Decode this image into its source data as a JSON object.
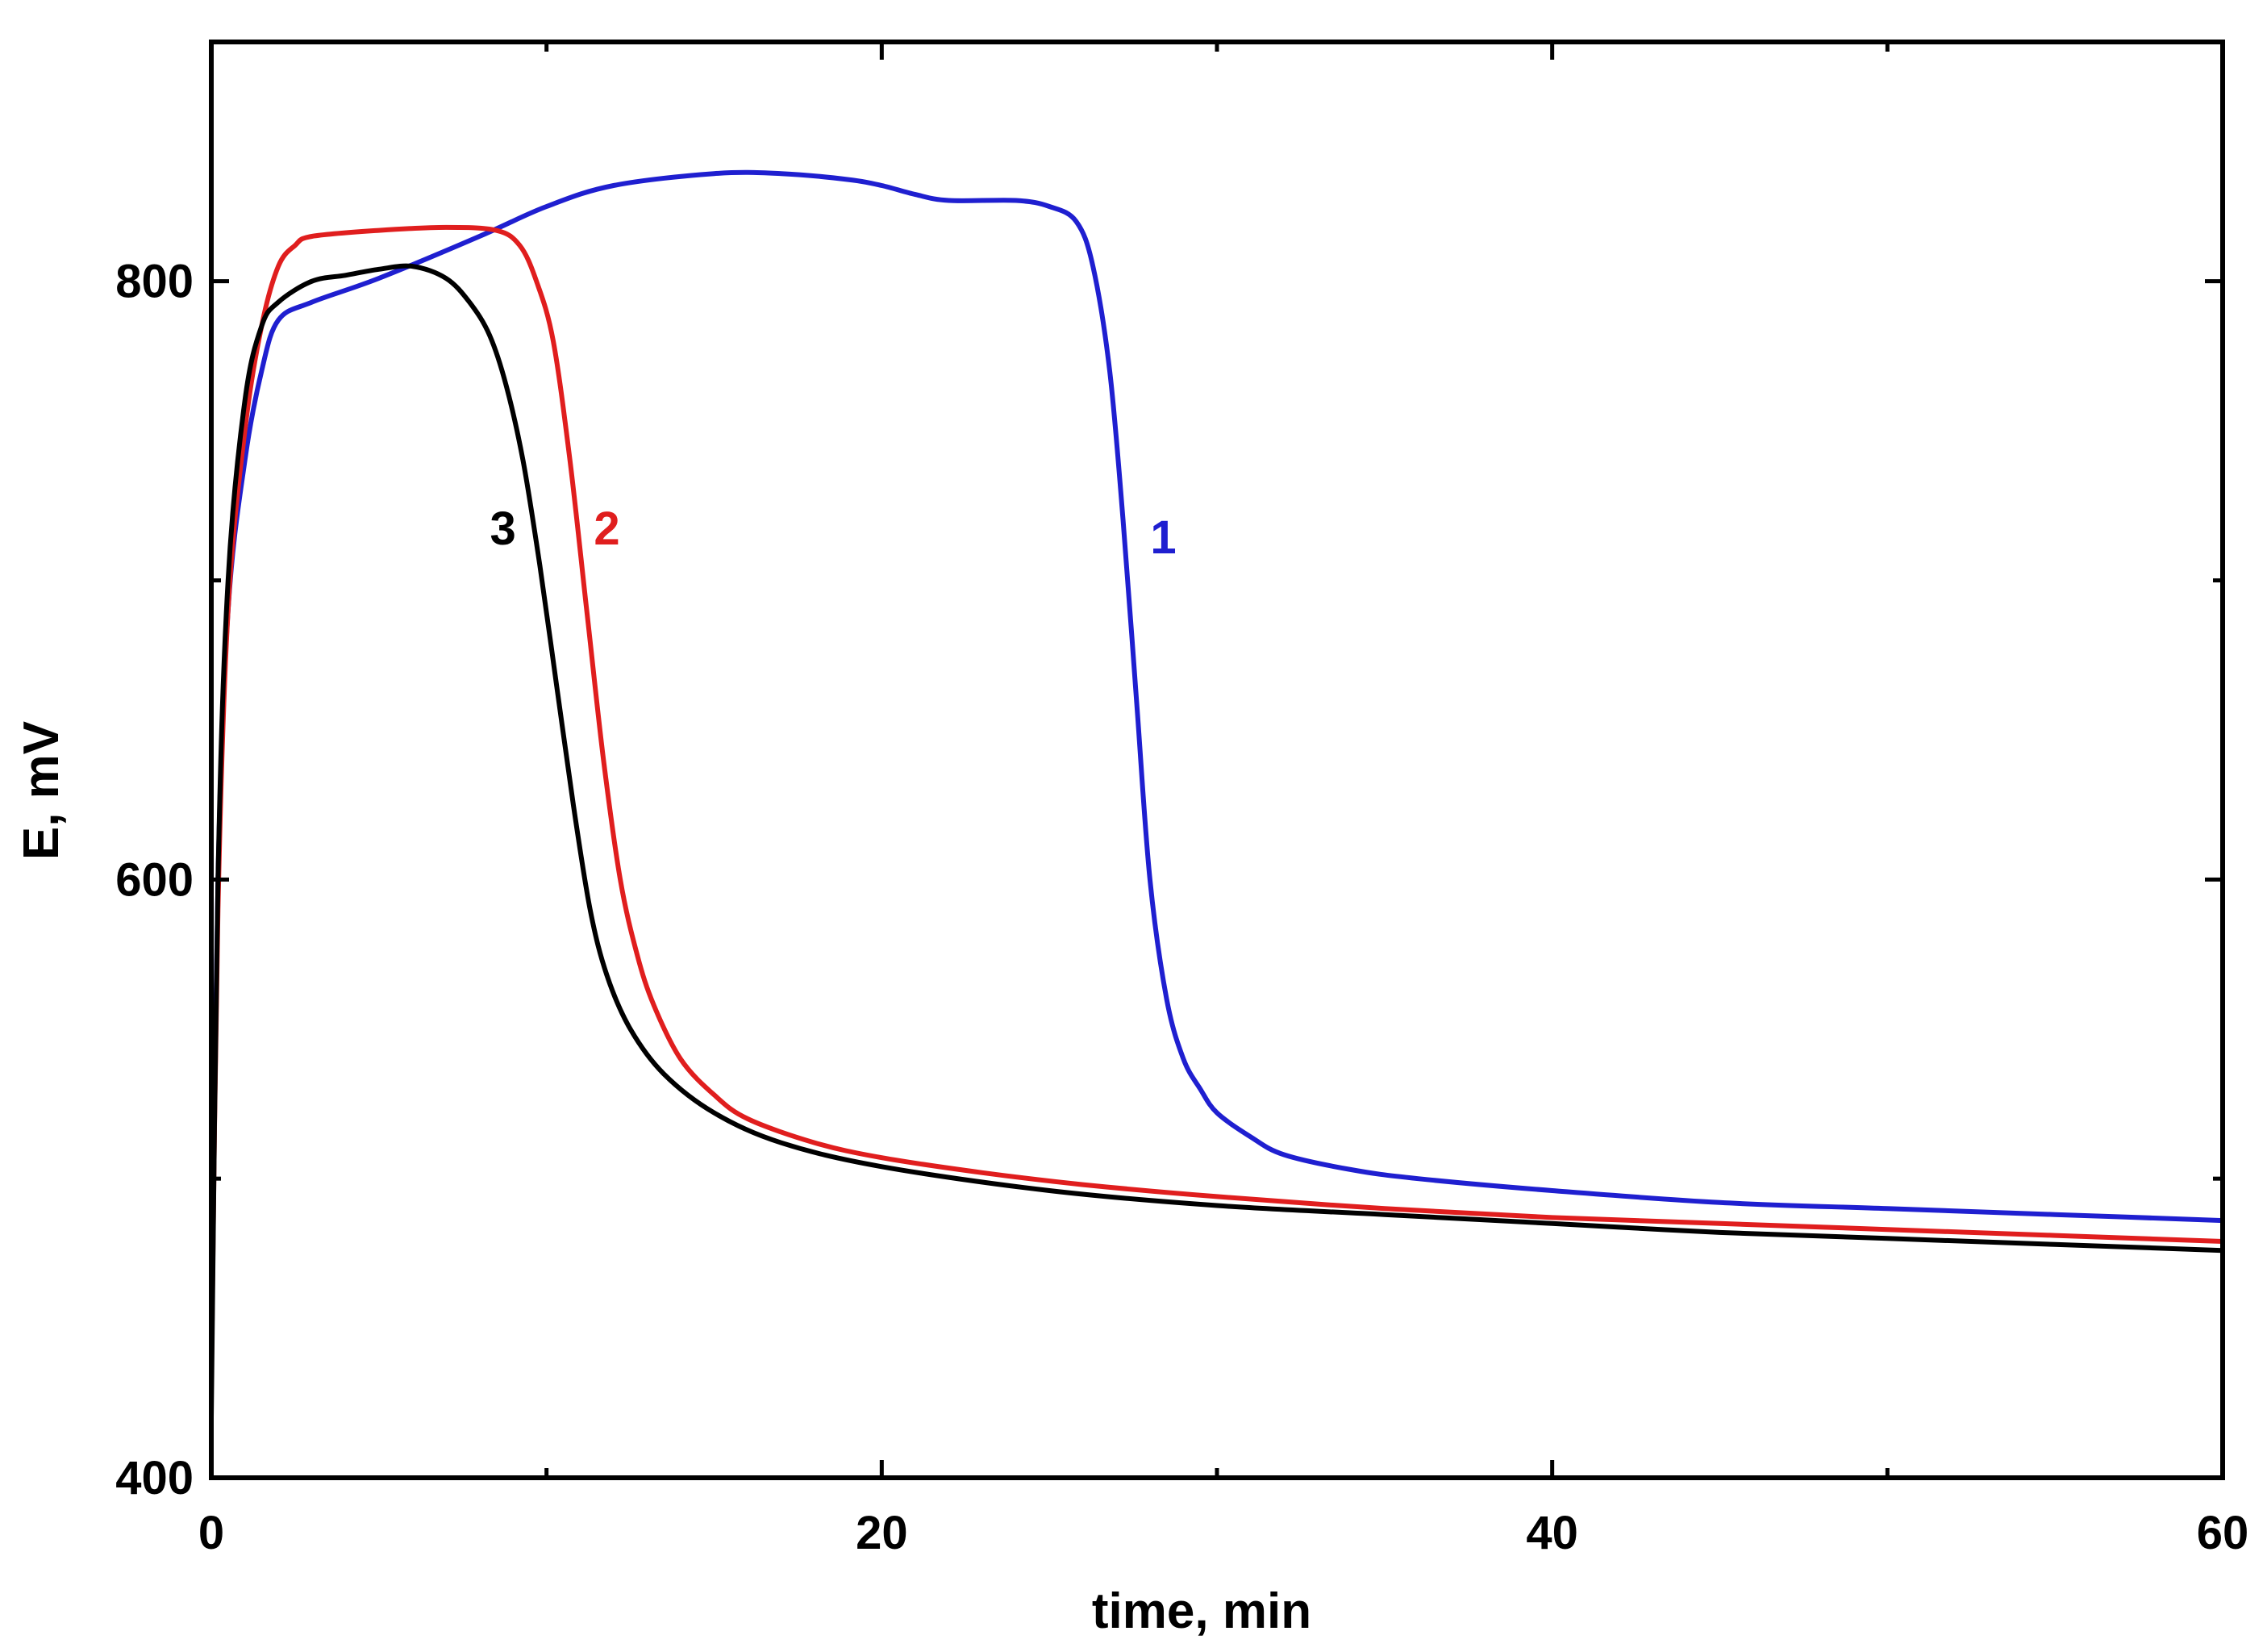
{
  "chart_data": {
    "type": "line",
    "title": "",
    "xlabel": "time, min",
    "ylabel": "E, mV",
    "xlim": [
      0,
      60
    ],
    "ylim": [
      400,
      880
    ],
    "x_ticks": [
      0,
      20,
      40,
      60
    ],
    "x_minor_ticks": [
      10,
      30,
      50
    ],
    "y_ticks": [
      400,
      600,
      800
    ],
    "y_minor_ticks": [
      500,
      700
    ],
    "grid": false,
    "legend": "none",
    "series": [
      {
        "name": "1",
        "label": "1",
        "color": "#1f1fd0",
        "x": [
          0,
          0.2,
          0.5,
          1,
          1.5,
          2,
          3,
          5,
          8,
          10,
          12,
          15,
          17,
          19,
          20,
          21,
          22,
          24,
          25,
          25.8,
          26.3,
          26.8,
          27.2,
          27.6,
          28,
          28.5,
          29,
          29.5,
          30,
          31,
          32,
          34,
          36,
          40,
          45,
          50,
          55,
          60
        ],
        "y": [
          440,
          600,
          690,
          740,
          770,
          787,
          793,
          801,
          815,
          825,
          832,
          836,
          836,
          834,
          832,
          829,
          827,
          827,
          825,
          820,
          805,
          770,
          720,
          660,
          600,
          560,
          540,
          530,
          522,
          514,
          508,
          503,
          500,
          496,
          492,
          490,
          488,
          486
        ]
      },
      {
        "name": "2",
        "label": "2",
        "color": "#e01e1e",
        "x": [
          0,
          0.2,
          0.5,
          1,
          1.5,
          2,
          2.5,
          3,
          5,
          7,
          8.5,
          9.2,
          9.7,
          10.2,
          10.7,
          11.2,
          11.7,
          12.2,
          12.7,
          13.2,
          14,
          15,
          16,
          18,
          20,
          23,
          26,
          30,
          35,
          40,
          45,
          50,
          55,
          60
        ],
        "y": [
          430,
          590,
          690,
          750,
          785,
          805,
          812,
          815,
          817,
          818,
          817,
          812,
          800,
          780,
          740,
          690,
          640,
          600,
          575,
          558,
          540,
          528,
          520,
          512,
          507,
          502,
          498,
          494,
          490,
          487,
          485,
          483,
          481,
          479
        ]
      },
      {
        "name": "3",
        "label": "3",
        "color": "#000000",
        "x": [
          0,
          0.2,
          0.5,
          1,
          1.5,
          2,
          3,
          4,
          5,
          6,
          7,
          7.7,
          8.3,
          8.8,
          9.3,
          9.8,
          10.3,
          10.8,
          11.3,
          11.8,
          12.5,
          13.5,
          15,
          17,
          20,
          25,
          30,
          35,
          40,
          45,
          50,
          55,
          60
        ],
        "y": [
          420,
          600,
          700,
          760,
          785,
          793,
          800,
          802,
          804,
          805,
          801,
          793,
          782,
          765,
          740,
          705,
          665,
          625,
          590,
          568,
          550,
          535,
          522,
          512,
          504,
          496,
          491,
          488,
          485,
          482,
          480,
          478,
          476
        ]
      }
    ],
    "annotations": [
      {
        "text": "1",
        "series": "1",
        "x": 28.4,
        "y": 709
      },
      {
        "text": "2",
        "series": "2",
        "x": 11.8,
        "y": 712
      },
      {
        "text": "3",
        "series": "3",
        "x": 8.7,
        "y": 712
      }
    ]
  }
}
